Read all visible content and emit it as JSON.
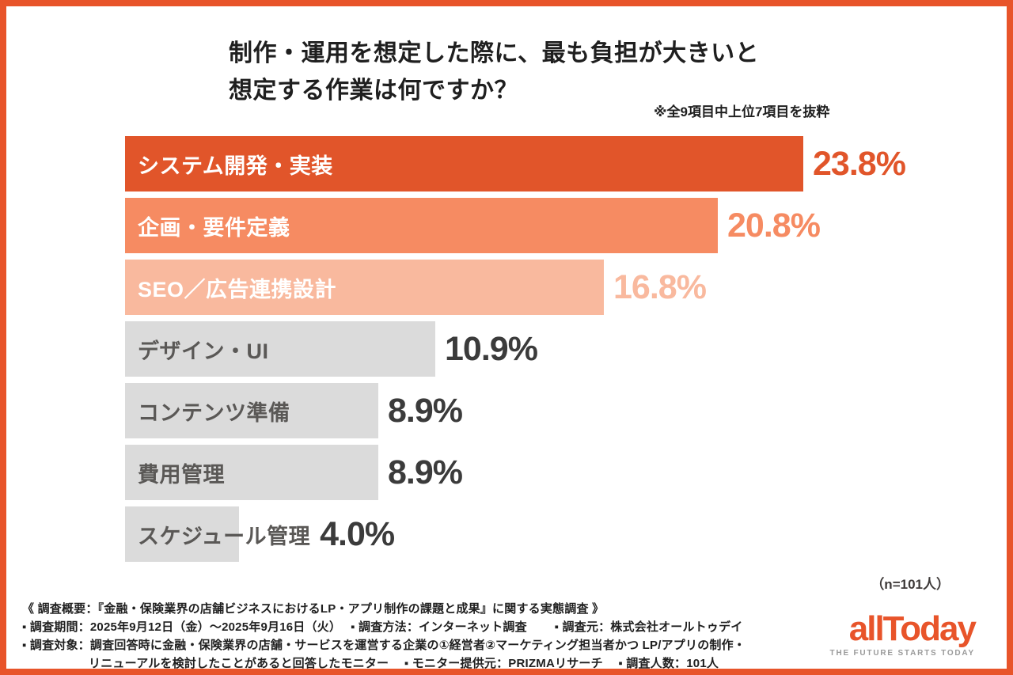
{
  "header": {
    "title_line1": "制作・運用を想定した際に、最も負担が大きいと",
    "title_line2": "想定する作業は何ですか？",
    "note": "※全9項目中上位7項目を抜粋"
  },
  "chart_data": {
    "type": "bar",
    "orientation": "horizontal",
    "title": "制作・運用を想定した際に、最も負担が大きいと想定する作業は何ですか？",
    "categories": [
      "システム開発・実装",
      "企画・要件定義",
      "SEO／広告連携設計",
      "デザイン・UI",
      "コンテンツ準備",
      "費用管理",
      "スケジュール管理"
    ],
    "values": [
      23.8,
      20.8,
      16.8,
      10.9,
      8.9,
      8.9,
      4.0
    ],
    "value_labels": [
      "23.8%",
      "20.8%",
      "16.8%",
      "10.9%",
      "8.9%",
      "8.9%",
      "4.0%"
    ],
    "bar_colors": [
      "#e1552a",
      "#f68b62",
      "#f9b99e",
      "#dbdbdb",
      "#dbdbdb",
      "#dbdbdb",
      "#dbdbdb"
    ],
    "category_text_colors": [
      "#ffffff",
      "#ffffff",
      "#ffffff",
      "#5a5856",
      "#5a5856",
      "#5a5856",
      "#5a5856"
    ],
    "value_text_colors": [
      "#e1552a",
      "#f68b62",
      "#f9b99e",
      "#3b3b3b",
      "#3b3b3b",
      "#3b3b3b",
      "#3b3b3b"
    ],
    "xlim": [
      0,
      25
    ],
    "legend": "none",
    "grid": false,
    "sample_size_note": "（n=101人）"
  },
  "footer": {
    "line1": "《 調査概要：『金融・保険業界の店舗ビジネスにおけるLP・アプリ制作の課題と成果』に関する実態調査 》",
    "line2": "▪ 調査期間：2025年9月12日（金）〜2025年9月16日（火）　 ▪ 調査方法：インターネット調査　 　▪ 調査元：株式会社オールトゥデイ",
    "line3": "▪ 調査対象：調査回答時に金融・保険業界の店舗・サービスを運営する企業の①経営者②マーケティング担当者かつ LP/アプリの制作・",
    "line4": "リニューアルを検討したことがあると回答したモニター　 ▪ モニター提供元：PRIZMAリサーチ　 ▪ 調査人数：101人"
  },
  "logo": {
    "wordmark": "allToday",
    "tagline": "THE FUTURE STARTS TODAY"
  },
  "colors": {
    "frame": "#e8542a",
    "accent_dark": "#e1552a",
    "accent_mid": "#f68b62",
    "accent_light": "#f9b99e",
    "bar_gray": "#dbdbdb"
  }
}
